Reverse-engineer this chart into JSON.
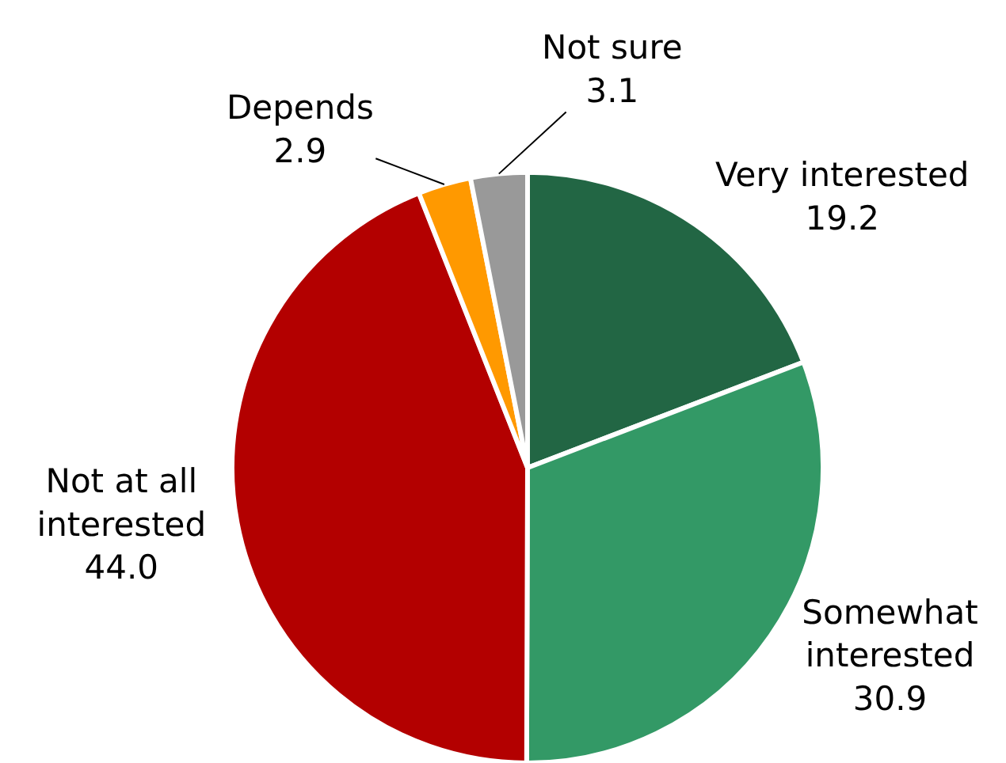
{
  "chart_data": {
    "type": "pie",
    "categories": [
      "Very interested",
      "Somewhat interested",
      "Not at all interested",
      "Depends",
      "Not sure"
    ],
    "values": [
      19.2,
      30.9,
      44.0,
      2.9,
      3.1
    ],
    "value_labels": [
      "19.2",
      "30.9",
      "44.0",
      "2.9",
      "3.1"
    ],
    "colors": [
      "#226644",
      "#339966",
      "#b30000",
      "#ff9900",
      "#999999"
    ],
    "legend": false
  }
}
